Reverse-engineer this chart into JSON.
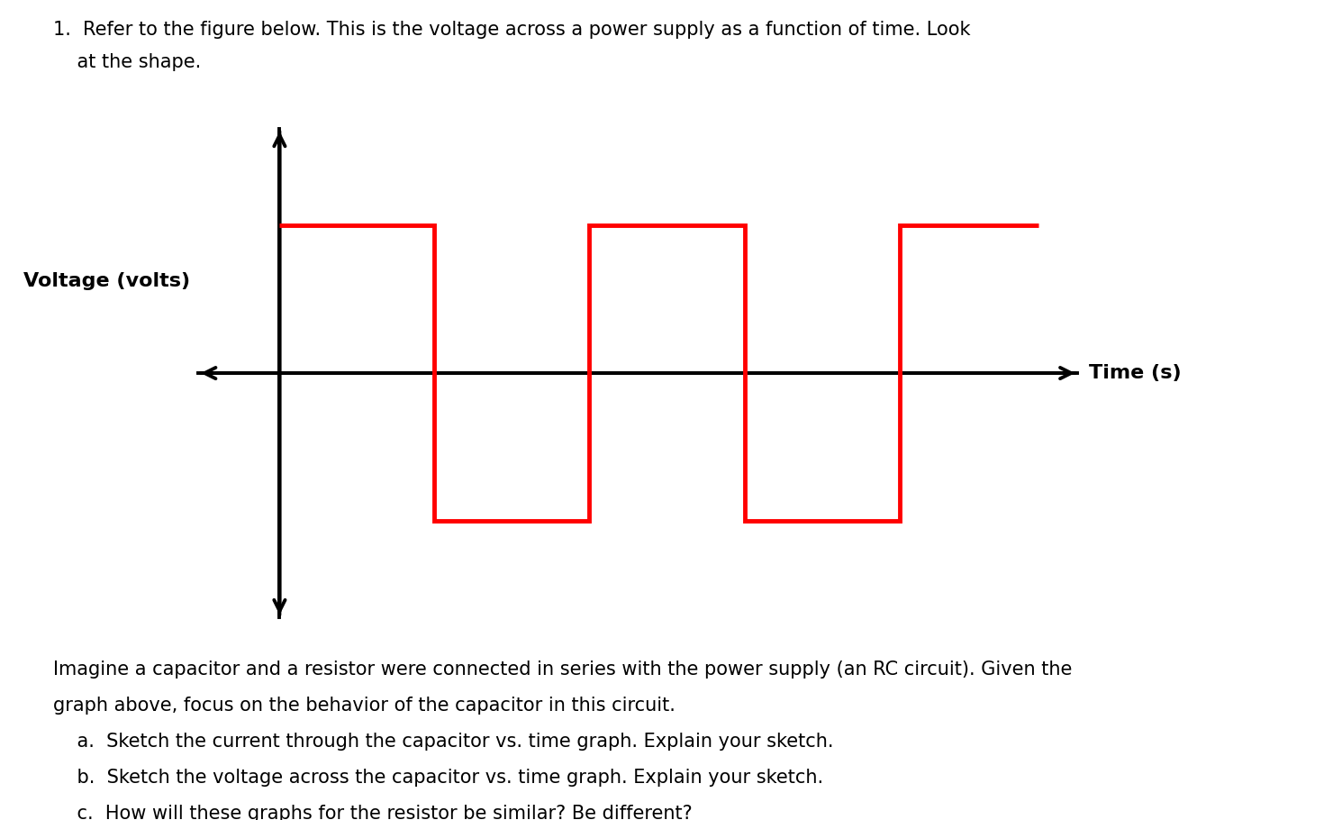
{
  "background_color": "#ffffff",
  "signal_color": "#ff0000",
  "axis_color": "#000000",
  "signal_linewidth": 3.5,
  "axis_linewidth": 2.8,
  "arrow_mutation_scale": 22,
  "xlim": [
    -1.2,
    10.5
  ],
  "ylim": [
    -1.8,
    1.8
  ],
  "sq_x": [
    0,
    2,
    2,
    4,
    4,
    6,
    6,
    8,
    8,
    9.8
  ],
  "sq_y": [
    1,
    1,
    -1,
    -1,
    1,
    1,
    -1,
    -1,
    1,
    1
  ],
  "xlabel": "Time (s)",
  "ylabel": "Voltage (volts)",
  "header_line1": "1.  Refer to the figure below. This is the voltage across a power supply as a function of time. Look",
  "header_line2": "    at the shape.",
  "footer_lines": [
    "Imagine a capacitor and a resistor were connected in series with the power supply (an RC circuit). Given the",
    "graph above, focus on the behavior of the capacitor in this circuit.",
    "    a.  Sketch the current through the capacitor vs. time graph. Explain your sketch.",
    "    b.  Sketch the voltage across the capacitor vs. time graph. Explain your sketch.",
    "    c.  How will these graphs for the resistor be similar? Be different?"
  ],
  "header_fontsize": 15,
  "footer_fontsize": 15,
  "xlabel_fontsize": 16,
  "ylabel_fontsize": 16
}
